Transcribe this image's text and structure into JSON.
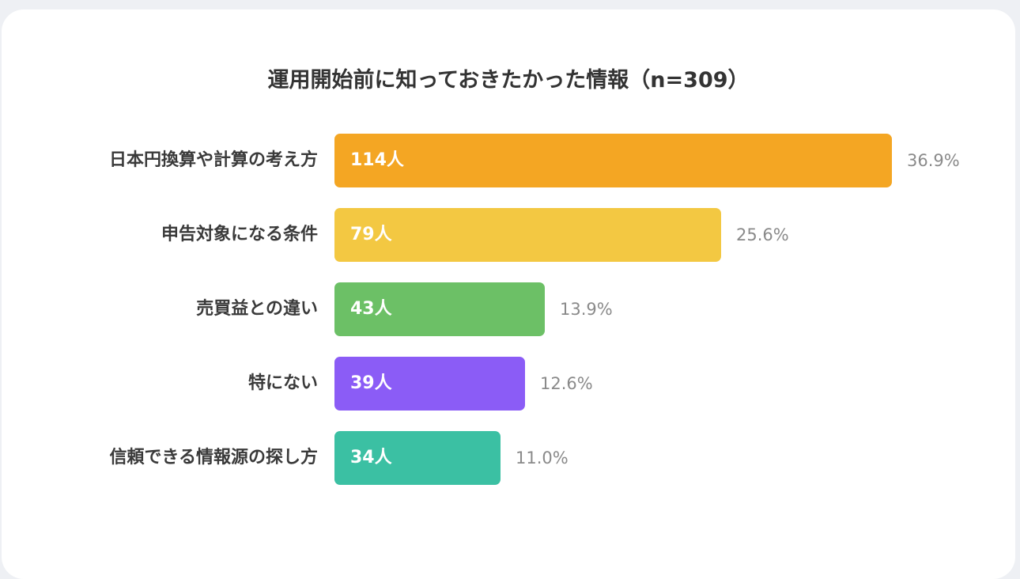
{
  "chart_data": {
    "type": "bar",
    "orientation": "horizontal",
    "title": "運用開始前に知っておきたかった情報（n=309）",
    "categories": [
      "日本円換算や計算の考え方",
      "申告対象になる条件",
      "売買益との違い",
      "特にない",
      "信頼できる情報源の探し方"
    ],
    "values": [
      114,
      79,
      43,
      39,
      34
    ],
    "value_labels": [
      "114人",
      "79人",
      "43人",
      "39人",
      "34人"
    ],
    "percent_labels": [
      "36.9%",
      "25.6%",
      "13.9%",
      "12.6%",
      "11.0%"
    ],
    "percent_values": [
      36.9,
      25.6,
      13.9,
      12.6,
      11.0
    ],
    "colors": [
      "#f4a623",
      "#f3c842",
      "#6cc066",
      "#8b5cf6",
      "#3bc0a3"
    ],
    "xlim": [
      0,
      114
    ],
    "grid": false,
    "legend": "none"
  }
}
